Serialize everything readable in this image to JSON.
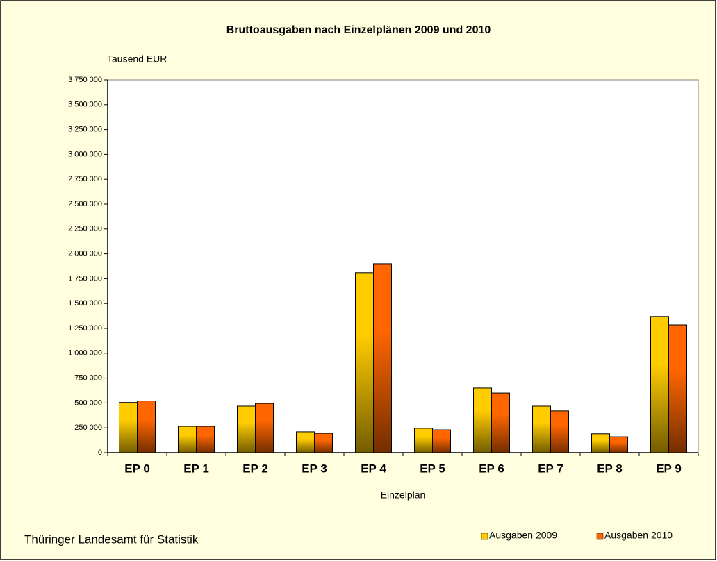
{
  "chart_data": {
    "type": "bar",
    "title": "Bruttoausgaben nach Einzelplänen 2009 und 2010",
    "y_label": "Tausend EUR",
    "x_label": "Einzelplan",
    "source": "Thüringer Landesamt für Statistik",
    "categories": [
      "EP 0",
      "EP 1",
      "EP 2",
      "EP 3",
      "EP 4",
      "EP 5",
      "EP 6",
      "EP 7",
      "EP 8",
      "EP 9"
    ],
    "series": [
      {
        "name": "Ausgaben 2009",
        "color": "#ffcc00",
        "values": [
          505000,
          265000,
          468000,
          210000,
          1810000,
          245000,
          650000,
          468000,
          190000,
          1370000
        ]
      },
      {
        "name": "Ausgaben 2010",
        "color": "#ff6600",
        "values": [
          520000,
          265000,
          495000,
          195000,
          1900000,
          230000,
          600000,
          420000,
          160000,
          1285000
        ]
      }
    ],
    "ylim": [
      0,
      3750000
    ],
    "yticks": [
      0,
      {
        "value": 250000,
        "label": "250 000"
      },
      {
        "value": 500000,
        "label": "500 000"
      },
      {
        "value": 750000,
        "label": "750 000"
      },
      {
        "value": 1000000,
        "label": "1 000 000"
      },
      {
        "value": 1250000,
        "label": "1 250 000"
      },
      {
        "value": 1500000,
        "label": "1 500 000"
      },
      {
        "value": 1750000,
        "label": "1 750 000"
      },
      {
        "value": 2000000,
        "label": "2 000 000"
      },
      {
        "value": 2250000,
        "label": "2 250 000"
      },
      {
        "value": 2500000,
        "label": "2 500 000"
      },
      {
        "value": 2750000,
        "label": "2 750 000"
      },
      {
        "value": 3000000,
        "label": "3 000 000"
      },
      {
        "value": 3250000,
        "label": "3 250 000"
      },
      {
        "value": 3500000,
        "label": "3 500 000"
      },
      {
        "value": 3750000,
        "label": "3 750 000"
      }
    ],
    "grid": false,
    "legend": "bottom-right"
  }
}
